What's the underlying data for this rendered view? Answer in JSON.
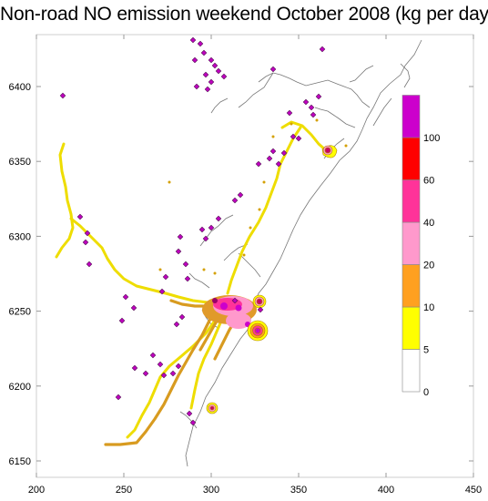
{
  "title": "Non-road NO emission weekend October 2008 (kg per day)",
  "chart_data": {
    "type": "map",
    "x_axis": {
      "range": [
        200,
        450
      ],
      "ticks": [
        "200",
        "250",
        "300",
        "350",
        "400",
        "450"
      ],
      "tick_values": [
        200,
        250,
        300,
        350,
        400,
        450
      ]
    },
    "y_axis": {
      "range": [
        6150,
        6400
      ],
      "ticks": [
        "6150",
        "6200",
        "6250",
        "6300",
        "6350",
        "6400"
      ],
      "tick_values": [
        6150,
        6200,
        6250,
        6300,
        6350,
        6400
      ]
    },
    "legend": {
      "placement": "right",
      "bins": [
        {
          "lower": "0",
          "color": "#ffffff"
        },
        {
          "lower": "5",
          "color": "#ffff00"
        },
        {
          "lower": "10",
          "color": "#ffa020"
        },
        {
          "lower": "20",
          "color": "#ff99cc"
        },
        {
          "lower": "40",
          "color": "#ff3399"
        },
        {
          "lower": "60",
          "color": "#ff0000"
        },
        {
          "lower": "100",
          "color": "#cc00cc"
        }
      ]
    },
    "hotspots": [
      {
        "x": 395,
        "y": 6358,
        "max_bin": "60"
      },
      {
        "x": 347,
        "y": 6255,
        "max_bin": "60"
      },
      {
        "x": 347,
        "y": 6238,
        "max_bin": "100"
      },
      {
        "x": 315,
        "y": 6184,
        "max_bin": "60"
      }
    ]
  }
}
